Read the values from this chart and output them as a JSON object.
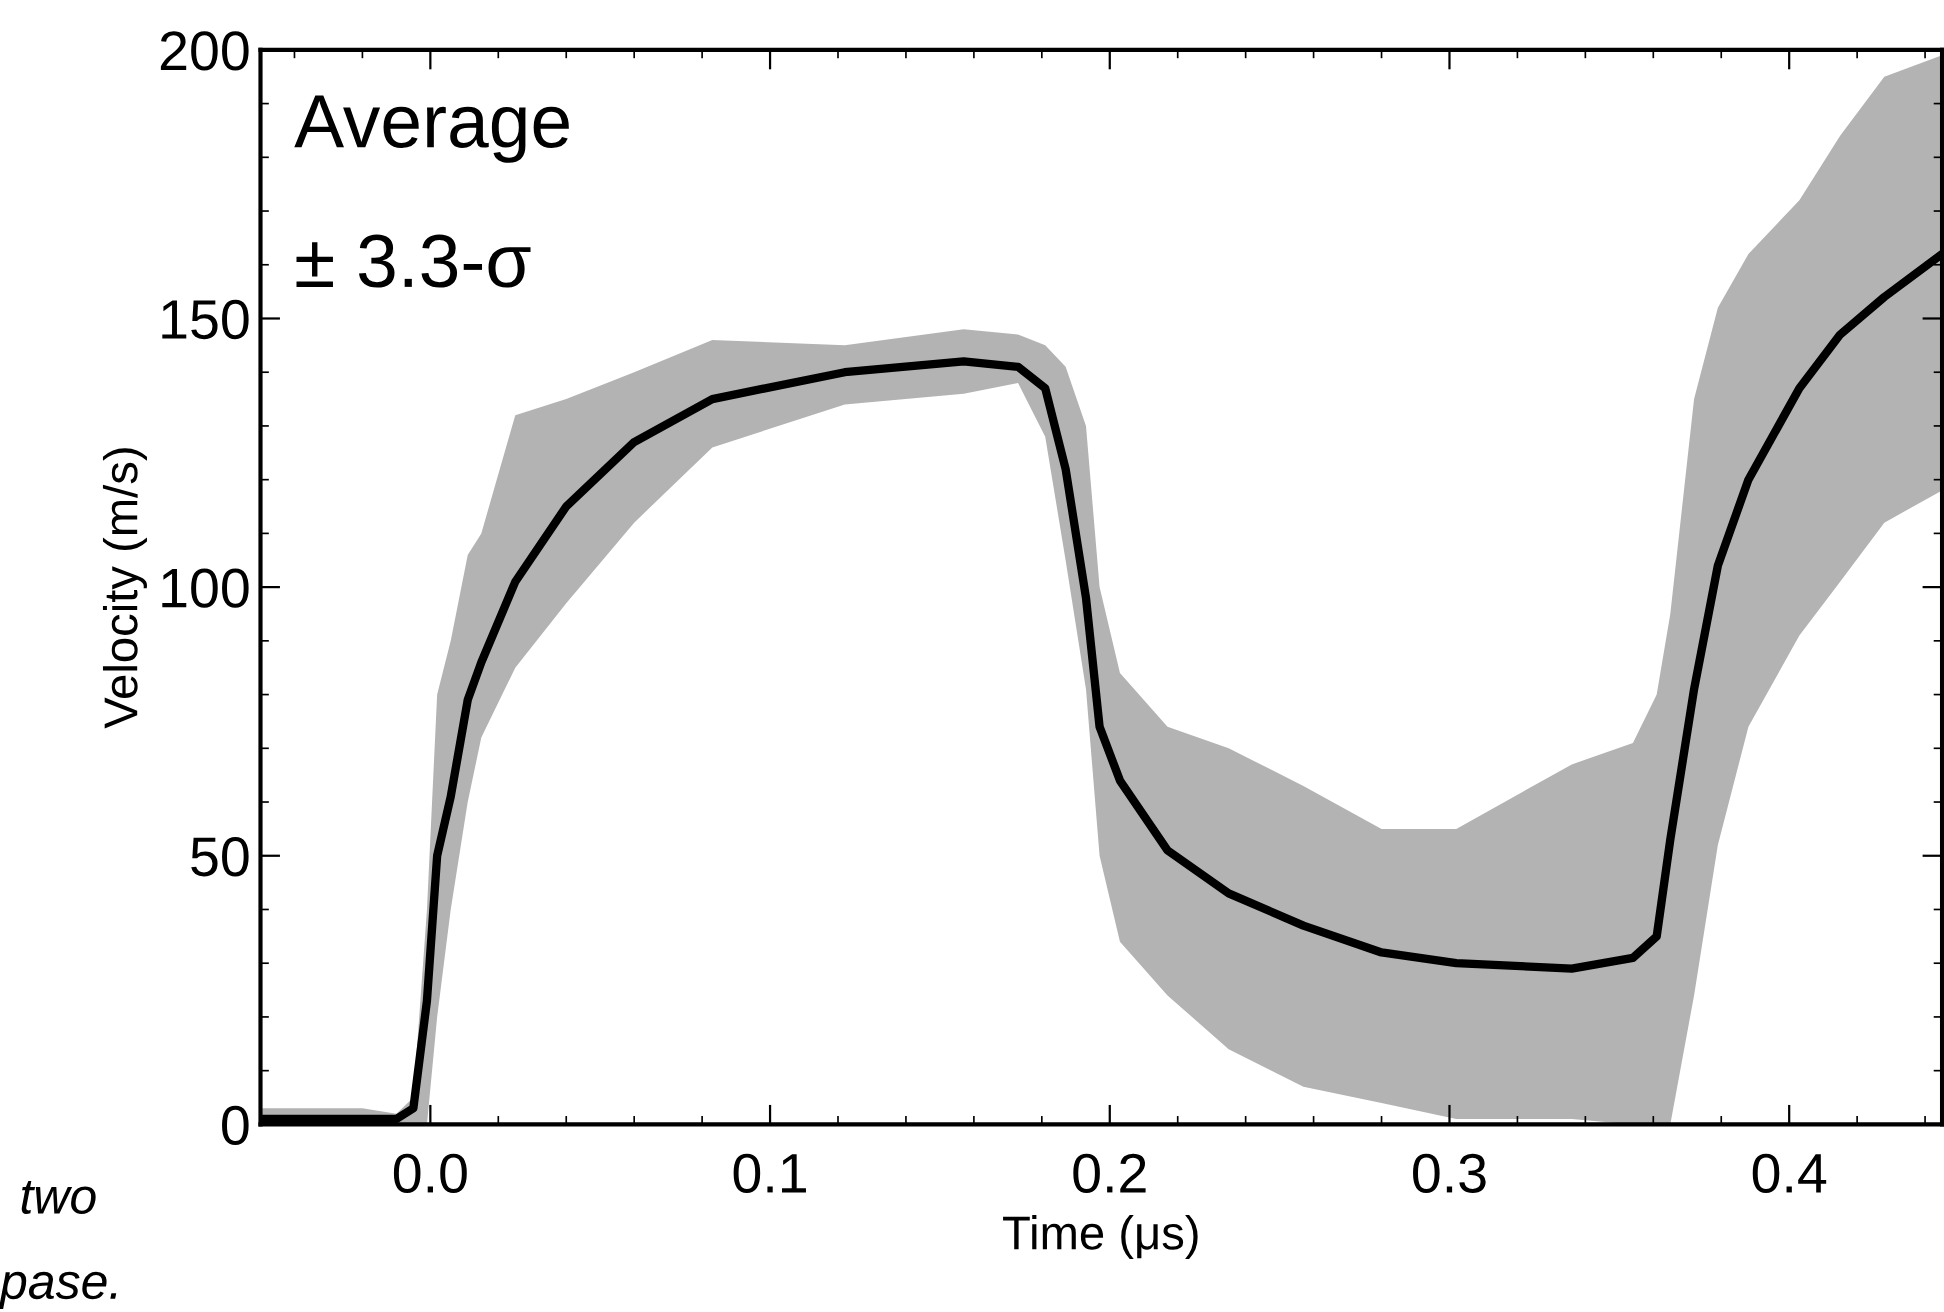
{
  "chart_data": {
    "type": "line",
    "xlabel": "Time (μs)",
    "ylabel": "Velocity (m/s)",
    "xlim": [
      -0.05,
      0.445
    ],
    "ylim": [
      0,
      200
    ],
    "xticks": [
      {
        "value": 0.0,
        "label": "0.0"
      },
      0.1,
      0.2,
      0.3,
      0.4
    ],
    "yticks": [
      0,
      50,
      100,
      150,
      200
    ],
    "grid": false,
    "legend": false,
    "annotations": [
      "Average",
      "± 3.3-σ",
      "two",
      "pase."
    ],
    "series": [
      {
        "color": "#000000",
        "x": [
          -0.05,
          -0.02,
          -0.01,
          -0.005,
          -0.001,
          0.002,
          0.006,
          0.011,
          0.015,
          0.025,
          0.04,
          0.06,
          0.083,
          0.122,
          0.157,
          0.173,
          0.181,
          0.187,
          0.193,
          0.197,
          0.203,
          0.217,
          0.235,
          0.257,
          0.28,
          0.302,
          0.336,
          0.354,
          0.361,
          0.365,
          0.372,
          0.379,
          0.388,
          0.403,
          0.415,
          0.428,
          0.445
        ],
        "values": [
          1,
          1,
          1,
          3,
          23,
          50,
          61,
          79,
          86,
          101,
          115,
          127,
          135,
          140,
          142,
          141,
          137,
          122,
          98,
          74,
          64,
          51,
          43,
          37,
          32,
          30,
          29,
          31,
          35,
          53,
          81,
          104,
          120,
          137,
          147,
          154,
          162
        ],
        "lower": [
          0,
          0,
          0,
          0,
          0,
          20,
          40,
          60,
          72,
          85,
          97,
          112,
          126,
          134,
          136,
          138,
          128,
          105,
          81,
          50,
          34,
          24,
          14,
          7,
          4,
          1,
          1,
          0,
          0,
          0,
          24,
          52,
          74,
          91,
          101,
          112,
          118
        ],
        "upper": [
          3,
          3,
          2,
          5,
          40,
          80,
          90,
          106,
          110,
          132,
          135,
          140,
          146,
          145,
          148,
          147,
          145,
          141,
          130,
          100,
          84,
          74,
          70,
          63,
          55,
          55,
          67,
          71,
          80,
          95,
          135,
          152,
          162,
          172,
          184,
          195,
          199
        ]
      }
    ]
  }
}
